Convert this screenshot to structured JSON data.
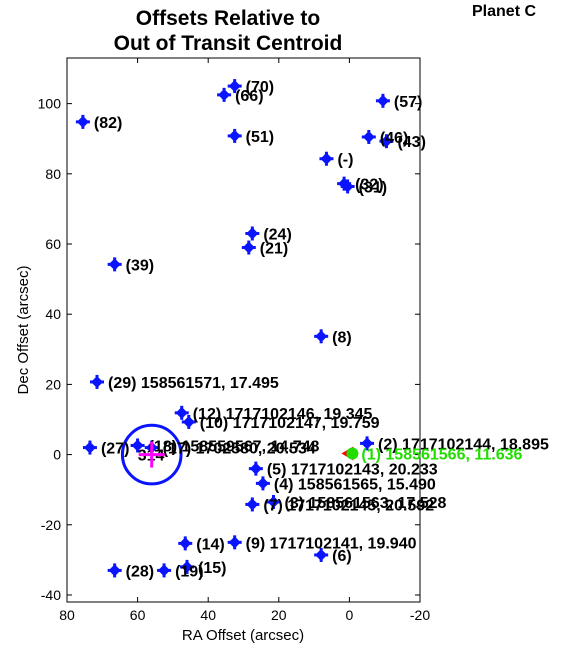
{
  "chart_data": {
    "type": "scatter",
    "title_lines": [
      "Offsets Relative to",
      "Out of Transit Centroid"
    ],
    "side_title": "Planet C",
    "xlabel": "RA Offset (arcsec)",
    "ylabel": "Dec Offset (arcsec)",
    "xlim": [
      80,
      -20
    ],
    "ylim": [
      -42,
      113
    ],
    "x_reversed": true,
    "xticks": [
      80,
      60,
      40,
      20,
      0,
      -20
    ],
    "yticks": [
      -40,
      -20,
      0,
      20,
      40,
      60,
      80,
      100
    ],
    "colors": {
      "marker": "#0a14ff",
      "centroid": "#ff00ff",
      "highlight": "#22dd00",
      "circle": "#0a14ff"
    },
    "points": [
      {
        "x": 32.5,
        "y": 105.0,
        "label": "(70)"
      },
      {
        "x": 35.5,
        "y": 102.5,
        "label": "(66)"
      },
      {
        "x": -9.5,
        "y": 100.8,
        "label": "(57)"
      },
      {
        "x": 75.5,
        "y": 94.8,
        "label": "(82)"
      },
      {
        "x": 32.5,
        "y": 90.8,
        "label": "(51)"
      },
      {
        "x": -5.5,
        "y": 90.5,
        "label": "(46)"
      },
      {
        "x": -10.5,
        "y": 89.3,
        "label": "(43)"
      },
      {
        "x": 6.5,
        "y": 84.3,
        "label": "(-)"
      },
      {
        "x": 1.5,
        "y": 77.2,
        "label": "(32)"
      },
      {
        "x": 0.5,
        "y": 76.4,
        "label": "(31)"
      },
      {
        "x": 27.5,
        "y": 63.0,
        "label": "(24)"
      },
      {
        "x": 28.5,
        "y": 59.0,
        "label": "(21)"
      },
      {
        "x": 66.5,
        "y": 54.2,
        "label": "(39)"
      },
      {
        "x": 8.0,
        "y": 33.7,
        "label": "(8)"
      },
      {
        "x": 71.5,
        "y": 20.7,
        "label": "(29) 158561571, 17.495"
      },
      {
        "x": 47.5,
        "y": 11.9,
        "label": "(12) 1717102146, 19.345"
      },
      {
        "x": 45.5,
        "y": 9.3,
        "label": "(10) 1717102147, 19.759"
      },
      {
        "x": 73.5,
        "y": 2.0,
        "label": "(27)"
      },
      {
        "x": 60.0,
        "y": 2.6,
        "label": "(18) 158559567, 14.748"
      },
      {
        "x": 56.0,
        "y": 2.0,
        "label": "(17) 1702580, 20.534"
      },
      {
        "x": -5.0,
        "y": 3.2,
        "label": "(2) 1717102144, 18.895"
      },
      {
        "x": 26.5,
        "y": -4.0,
        "label": "(5) 1717102143, 20.233"
      },
      {
        "x": 24.5,
        "y": -8.2,
        "label": "(4) 158561565, 15.490"
      },
      {
        "x": 21.5,
        "y": -13.5,
        "label": "(3) 158561563, 17.528"
      },
      {
        "x": 27.5,
        "y": -14.2,
        "label": "(7) 1717102145, 20.592"
      },
      {
        "x": 32.5,
        "y": -25.0,
        "label": "(9) 1717102141, 19.940"
      },
      {
        "x": 46.5,
        "y": -25.3,
        "label": "(14)"
      },
      {
        "x": 8.0,
        "y": -28.6,
        "label": "(6)"
      },
      {
        "x": 46.0,
        "y": -32.0,
        "label": "(15)"
      },
      {
        "x": 66.5,
        "y": -33.0,
        "label": "(28)"
      },
      {
        "x": 52.5,
        "y": -33.0,
        "label": "(19)"
      }
    ],
    "highlight_point": {
      "x": 0.0,
      "y": 0.3,
      "label": "(1) 158561566, 11.636"
    },
    "centroid_label": "314",
    "centroid": {
      "x": 56.0,
      "y": 0.0,
      "circle_radius": 8.3
    }
  }
}
